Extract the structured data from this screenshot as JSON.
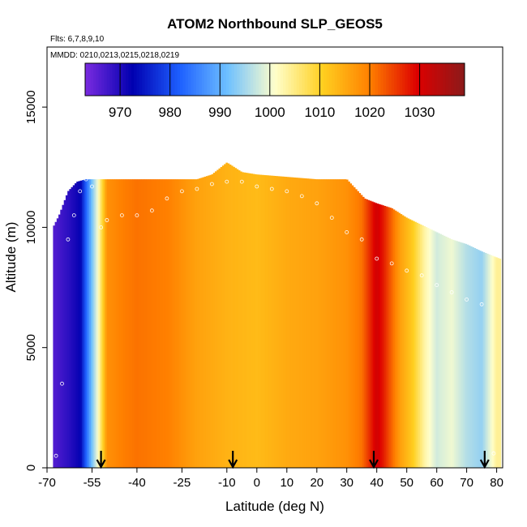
{
  "chart_data": {
    "type": "heatmap",
    "title": "ATOM2 Northbound SLP_GEOS5",
    "subtitle_flights": "Flts: 6,7,8,9,10",
    "subtitle_dates": "MMDD: 0210,0213,0215,0218,0219",
    "xlabel": "Latitude (deg N)",
    "ylabel": "Altitude (m)",
    "xlim": [
      -70,
      82
    ],
    "ylim": [
      0,
      17500
    ],
    "x_ticks": [
      -70,
      -55,
      -40,
      -25,
      -10,
      0,
      10,
      20,
      30,
      40,
      50,
      60,
      70,
      80
    ],
    "y_ticks": [
      0,
      5000,
      10000,
      15000
    ],
    "colorbar": {
      "vmin": 963,
      "vmax": 1039,
      "ticks": [
        970,
        980,
        990,
        1000,
        1010,
        1020,
        1030
      ],
      "colors": [
        "#7a2be0",
        "#0000b0",
        "#1e60ff",
        "#6ec0ff",
        "#ffffcc",
        "#ffd020",
        "#ff8000",
        "#dd0000",
        "#8b1a1a"
      ]
    },
    "slp_by_latitude": {
      "lat": [
        -68,
        -63,
        -59,
        -57,
        -55,
        -53,
        -50,
        -45,
        -40,
        -30,
        -20,
        -10,
        0,
        10,
        20,
        30,
        35,
        38,
        40,
        42,
        45,
        48,
        52,
        56,
        60,
        65,
        70,
        75,
        80
      ],
      "slp_hPa": [
        966,
        969,
        972,
        982,
        992,
        1001,
        1018,
        1020,
        1021,
        1020,
        1016,
        1014,
        1013,
        1015,
        1016,
        1018,
        1021,
        1027,
        1031,
        1028,
        1022,
        1016,
        1011,
        1003,
        998,
        1000,
        996,
        994,
        1004
      ]
    },
    "profile_top_altitude": {
      "lat": [
        -68,
        -66,
        -63,
        -60,
        -57,
        -50,
        -40,
        -30,
        -20,
        -15,
        -12,
        -10,
        -5,
        0,
        10,
        20,
        30,
        36,
        40,
        45,
        50,
        55,
        60,
        65,
        70,
        75,
        79,
        81
      ],
      "alt_m": [
        10000,
        10500,
        11500,
        11900,
        12000,
        12000,
        12000,
        12000,
        12000,
        12200,
        12500,
        12700,
        12300,
        12200,
        12100,
        12000,
        12000,
        11200,
        11000,
        10800,
        10400,
        10100,
        9800,
        9500,
        9300,
        9000,
        8800,
        8700
      ]
    },
    "flight_track": {
      "lat": [
        -67,
        -65,
        -63,
        -61,
        -59,
        -57,
        -55,
        -52,
        -50,
        -45,
        -40,
        -35,
        -30,
        -25,
        -20,
        -15,
        -10,
        -5,
        0,
        5,
        10,
        15,
        20,
        25,
        30,
        35,
        40,
        45,
        50,
        55,
        60,
        65,
        70,
        75,
        79
      ],
      "alt_m": [
        500,
        3500,
        9500,
        10500,
        11500,
        12000,
        11700,
        10000,
        10300,
        10500,
        10500,
        10700,
        11200,
        11500,
        11600,
        11800,
        11900,
        11900,
        11700,
        11600,
        11500,
        11300,
        11000,
        10400,
        9800,
        9500,
        8700,
        8500,
        8200,
        8000,
        7600,
        7300,
        7000,
        6800,
        600
      ]
    },
    "arrows_lat": [
      -52,
      -8,
      39,
      76
    ]
  }
}
